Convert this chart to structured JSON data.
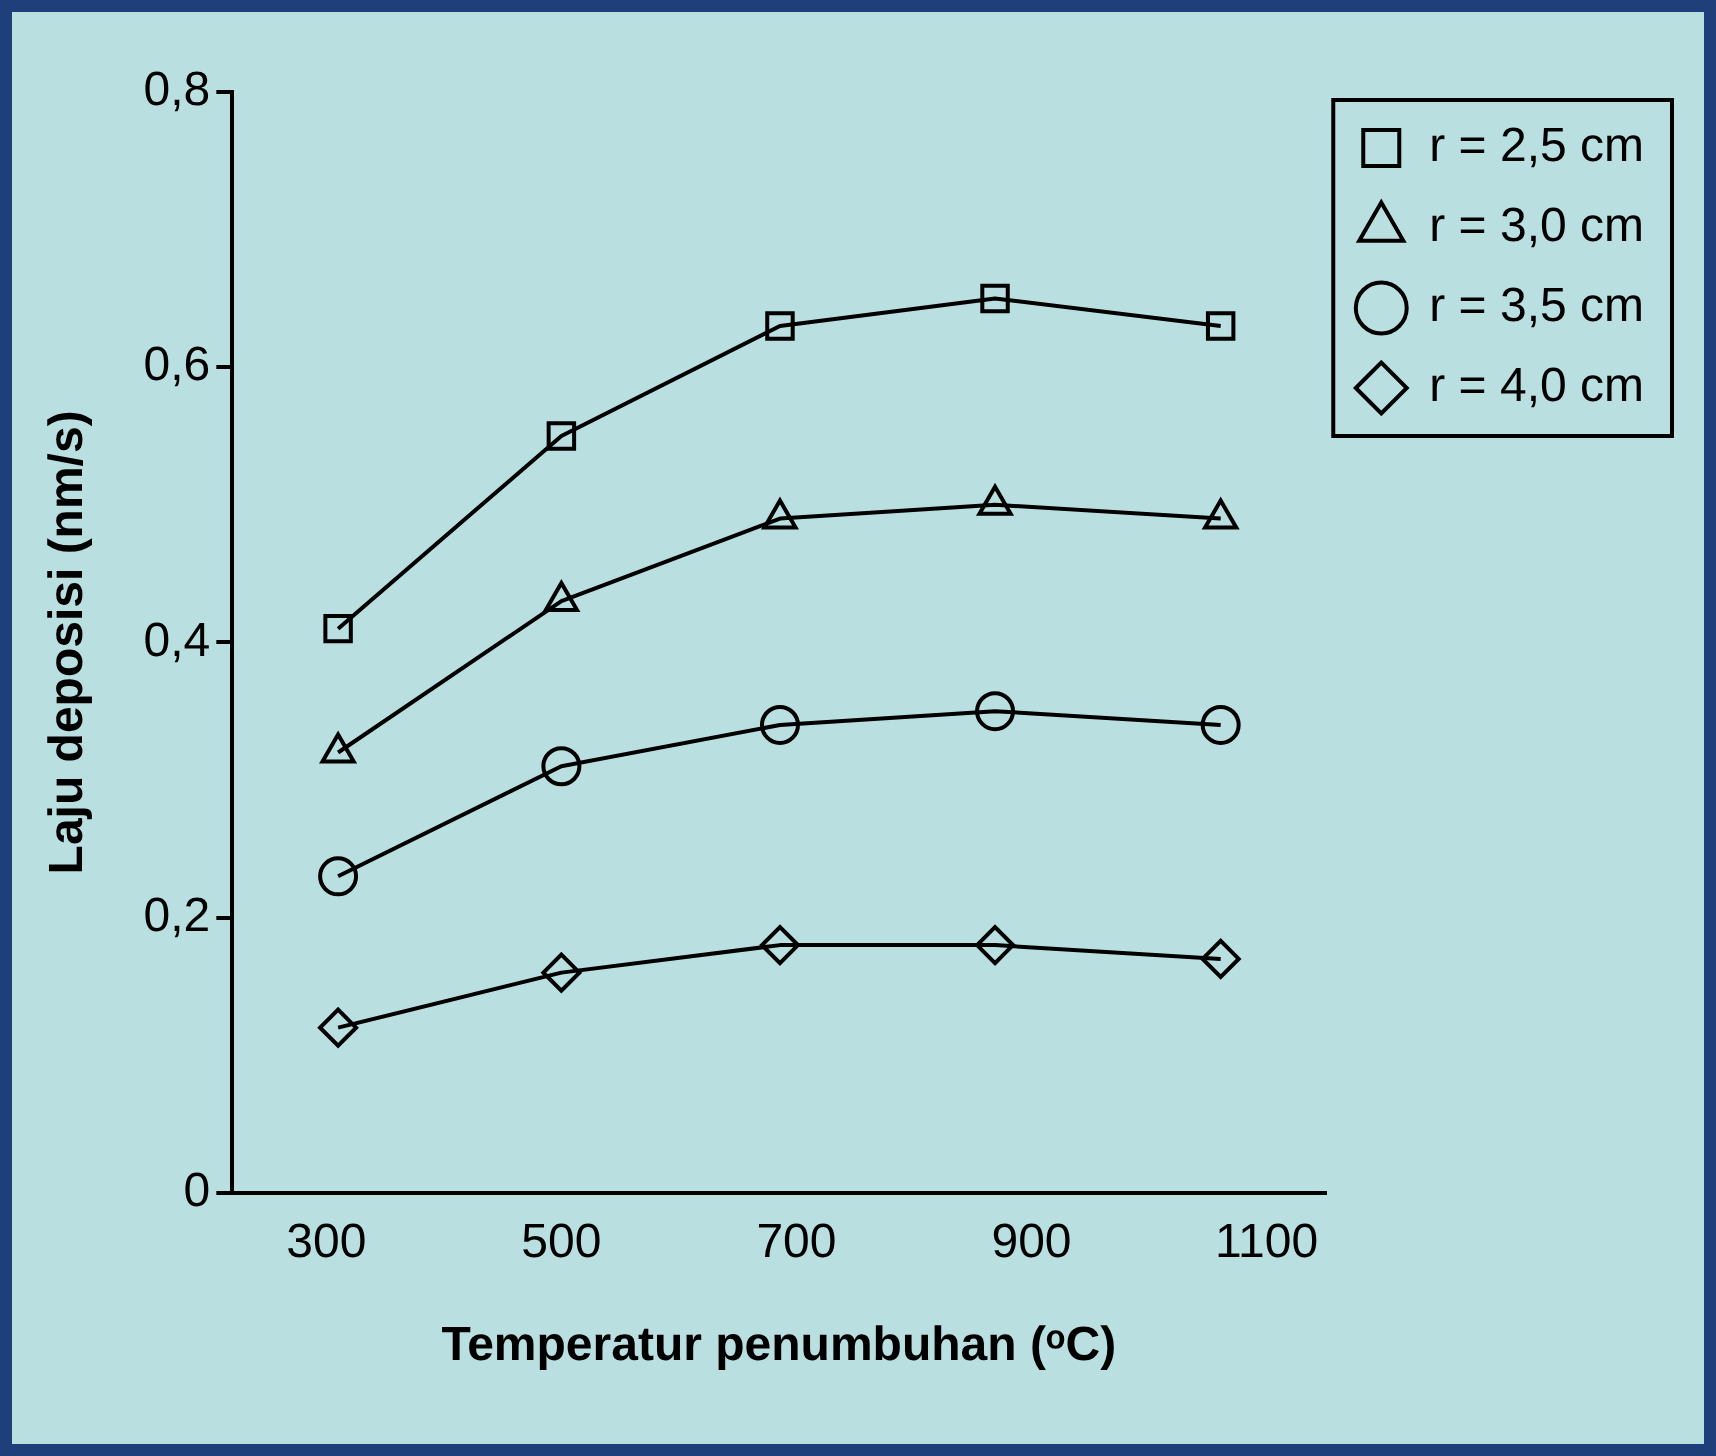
{
  "chart_data": {
    "type": "line",
    "xlabel": "Temperatur penumbuhan (ᵒC)",
    "ylabel": "Laju deposisi (nm/s)",
    "x": [
      310,
      500,
      686,
      869,
      1061
    ],
    "xlim": [
      220,
      1150
    ],
    "xticks": [
      300,
      500,
      700,
      900,
      1100
    ],
    "ylim": [
      0,
      0.8
    ],
    "yticks": [
      0,
      {
        "value": 0.2,
        "label": "0,2"
      },
      {
        "value": 0.4,
        "label": "0,4"
      },
      {
        "value": 0.6,
        "label": "0,6"
      },
      {
        "value": 0.8,
        "label": "0,8"
      }
    ],
    "grid": false,
    "legend": "top right",
    "line_style": "solid",
    "series": [
      {
        "name": "r = 2,5 cm",
        "color": "#000000",
        "marker": "square",
        "values": [
          0.41,
          0.55,
          0.63,
          0.65,
          0.63
        ]
      },
      {
        "name": "r = 3,0 cm",
        "color": "#000000",
        "marker": "triangle",
        "values": [
          0.32,
          0.43,
          0.49,
          0.5,
          0.49
        ]
      },
      {
        "name": "r = 3,5 cm",
        "color": "#000000",
        "marker": "circle",
        "values": [
          0.23,
          0.31,
          0.34,
          0.35,
          0.34
        ]
      },
      {
        "name": "r = 4,0 cm",
        "color": "#000000",
        "marker": "diamond",
        "values": [
          0.12,
          0.16,
          0.18,
          0.18,
          0.17
        ]
      }
    ]
  }
}
